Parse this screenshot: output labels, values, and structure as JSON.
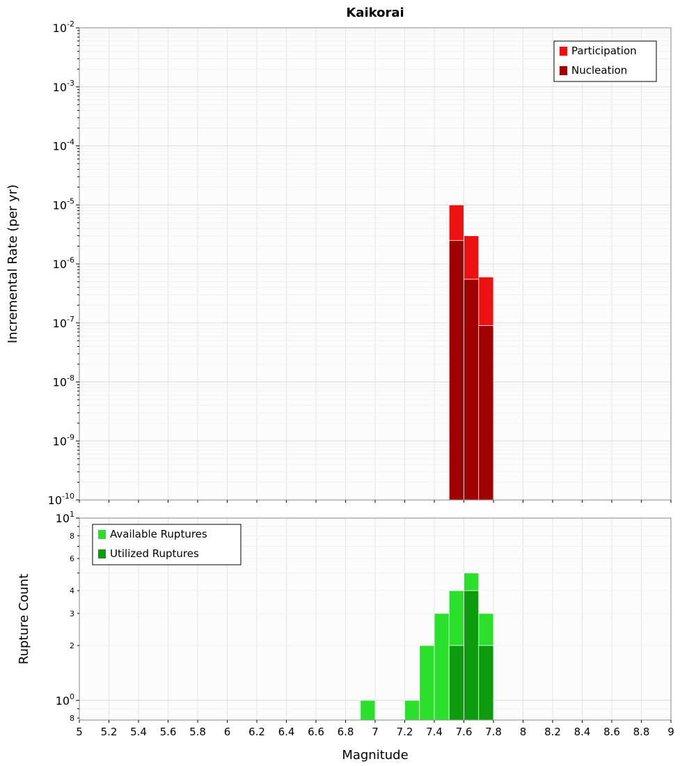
{
  "title": "Kaikorai",
  "chart_data": [
    {
      "type": "bar",
      "name": "incremental-rate-panel",
      "ylabel": "Incremental Rate (per yr)",
      "xlabel": "",
      "yscale": "log",
      "ylim": [
        1e-10,
        0.01
      ],
      "xlim": [
        5,
        9
      ],
      "bin_width": 0.1,
      "grid": true,
      "legend_position": "top-right",
      "legend": [
        {
          "label": "Participation",
          "color": "#ee1111"
        },
        {
          "label": "Nucleation",
          "color": "#a00000"
        }
      ],
      "x_ticks": [
        5,
        5.2,
        5.4,
        5.6,
        5.8,
        6,
        6.2,
        6.4,
        6.6,
        6.8,
        7,
        7.2,
        7.4,
        7.6,
        7.8,
        8,
        8.2,
        8.4,
        8.6,
        8.8,
        9
      ],
      "y_major_ticks": [
        0.01,
        0.001,
        0.0001,
        1e-05,
        1e-06,
        1e-07,
        1e-08,
        1e-09,
        1e-10
      ],
      "series": [
        {
          "name": "Participation",
          "color": "#ee1111",
          "x": [
            7.55,
            7.65,
            7.75
          ],
          "values": [
            1e-05,
            3e-06,
            6e-07
          ]
        },
        {
          "name": "Nucleation",
          "color": "#a00000",
          "x": [
            7.55,
            7.65,
            7.75
          ],
          "values": [
            2.5e-06,
            5.5e-07,
            9e-08
          ]
        }
      ]
    },
    {
      "type": "bar",
      "name": "rupture-count-panel",
      "ylabel": "Rupture Count",
      "xlabel": "Magnitude",
      "yscale": "log",
      "ylim": [
        0.78,
        10
      ],
      "xlim": [
        5,
        9
      ],
      "bin_width": 0.1,
      "grid": true,
      "legend_position": "top-left",
      "legend": [
        {
          "label": "Available Ruptures",
          "color": "#2ae02a"
        },
        {
          "label": "Utilized Ruptures",
          "color": "#0d9c0d"
        }
      ],
      "x_ticks": [
        5,
        5.2,
        5.4,
        5.6,
        5.8,
        6,
        6.2,
        6.4,
        6.6,
        6.8,
        7,
        7.2,
        7.4,
        7.6,
        7.8,
        8,
        8.2,
        8.4,
        8.6,
        8.8,
        9
      ],
      "y_major_ticks": [
        10,
        1
      ],
      "y_minor_labeled": [
        8,
        6,
        4,
        3,
        2,
        0.8
      ],
      "series": [
        {
          "name": "Available Ruptures",
          "color": "#2ae02a",
          "x": [
            6.95,
            7.25,
            7.35,
            7.45,
            7.55,
            7.65,
            7.75
          ],
          "values": [
            1,
            1,
            2,
            3,
            4,
            5,
            3
          ]
        },
        {
          "name": "Utilized Ruptures",
          "color": "#0d9c0d",
          "x": [
            7.55,
            7.65,
            7.75
          ],
          "values": [
            2,
            4,
            2
          ]
        }
      ]
    }
  ]
}
